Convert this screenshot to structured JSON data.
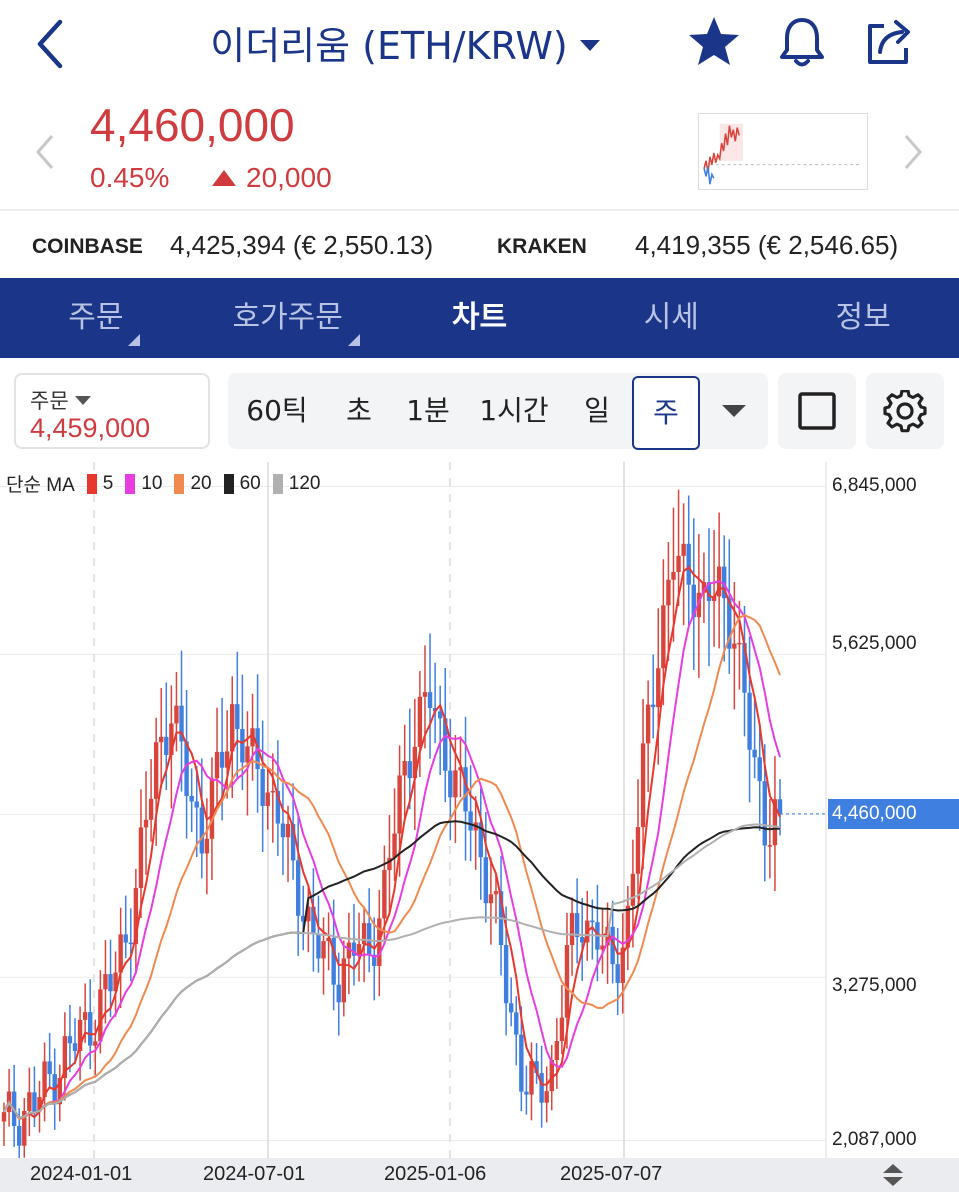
{
  "header": {
    "title": "이더리움 (ETH/KRW)"
  },
  "price": {
    "current": "4,460,000",
    "change_pct": "0.45%",
    "change_abs": "20,000",
    "color": "#cf3b3f"
  },
  "exchanges": [
    {
      "name": "COINBASE",
      "value": "4,425,394 (€ 2,550.13)"
    },
    {
      "name": "KRAKEN",
      "value": "4,419,355 (€ 2,546.65)"
    }
  ],
  "tabs": [
    {
      "label": "주문",
      "dropdown": true
    },
    {
      "label": "호가주문",
      "dropdown": true
    },
    {
      "label": "차트",
      "active": true
    },
    {
      "label": "시세"
    },
    {
      "label": "정보"
    }
  ],
  "toolbar": {
    "order_label": "주문",
    "order_value": "4,459,000",
    "intervals": [
      "60틱",
      "초",
      "1분",
      "1시간",
      "일",
      "주"
    ],
    "selected_interval": "주"
  },
  "chart_data": {
    "type": "candlestick",
    "legend_prefix": "단순 MA",
    "ma": [
      {
        "name": "5",
        "color": "#e8382d"
      },
      {
        "name": "10",
        "color": "#e83ee0"
      },
      {
        "name": "20",
        "color": "#f08a50"
      },
      {
        "name": "60",
        "color": "#222222"
      },
      {
        "name": "120",
        "color": "#b0b0b0"
      }
    ],
    "y_ticks": [
      "6,845,000",
      "5,625,000",
      "3,275,000",
      "2,087,000"
    ],
    "current_price_label": "4,460,000",
    "current_price": 4460000,
    "x_ticks": [
      "2024-01-01",
      "2024-07-01",
      "2025-01-06",
      "2025-07-07"
    ],
    "colors": {
      "up": "#d9453d",
      "down": "#3f7fe0",
      "accent": "#1b3689"
    }
  }
}
